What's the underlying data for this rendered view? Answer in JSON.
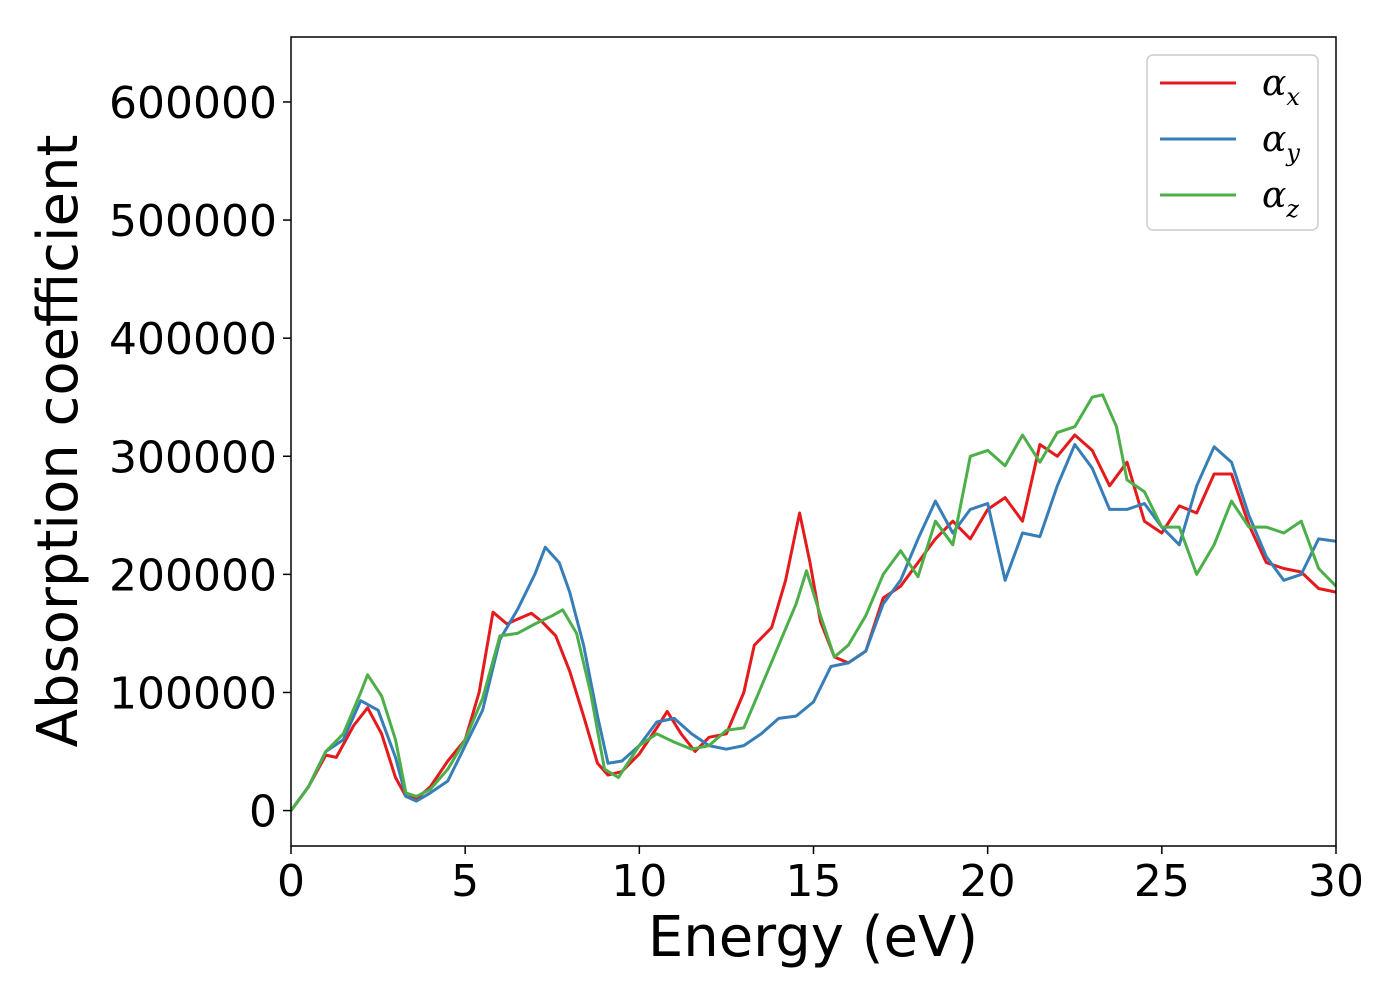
{
  "chart_data": {
    "type": "line",
    "xlabel": "Energy (eV)",
    "ylabel": "Absorption coefficient",
    "xlim": [
      0,
      30
    ],
    "ylim": [
      -30000,
      655000
    ],
    "xticks": [
      0,
      5,
      10,
      15,
      20,
      25,
      30
    ],
    "yticks": [
      0,
      100000,
      200000,
      300000,
      400000,
      500000,
      600000
    ],
    "grid": false,
    "legend_position": "top-right",
    "series": [
      {
        "name": "α",
        "subscript": "x",
        "color": "#e41a1c",
        "x": [
          0,
          0.5,
          1,
          1.3,
          1.8,
          2.2,
          2.6,
          3,
          3.3,
          3.6,
          4,
          4.5,
          5,
          5.4,
          5.8,
          6.2,
          6.5,
          6.9,
          7.2,
          7.6,
          8,
          8.4,
          8.8,
          9.1,
          9.5,
          10,
          10.5,
          10.8,
          11.2,
          11.6,
          12,
          12.5,
          13,
          13.3,
          13.8,
          14.2,
          14.6,
          14.9,
          15.2,
          15.6,
          16,
          16.5,
          17,
          17.5,
          18,
          18.5,
          19,
          19.5,
          20,
          20.5,
          21,
          21.5,
          22,
          22.5,
          23,
          23.5,
          24,
          24.5,
          25,
          25.5,
          26,
          26.5,
          27,
          27.5,
          28,
          28.5,
          29,
          29.5,
          30
        ],
        "y": [
          0,
          20000,
          47000,
          45000,
          72000,
          87000,
          65000,
          28000,
          12000,
          10000,
          20000,
          42000,
          60000,
          100000,
          168000,
          158000,
          162000,
          167000,
          160000,
          148000,
          118000,
          80000,
          40000,
          30000,
          33000,
          48000,
          70000,
          84000,
          65000,
          50000,
          62000,
          65000,
          100000,
          140000,
          155000,
          195000,
          252000,
          210000,
          160000,
          130000,
          125000,
          135000,
          180000,
          190000,
          210000,
          230000,
          245000,
          230000,
          255000,
          265000,
          245000,
          310000,
          300000,
          318000,
          305000,
          275000,
          295000,
          245000,
          235000,
          258000,
          252000,
          285000,
          285000,
          242000,
          210000,
          205000,
          202000,
          188000,
          185000
        ]
      },
      {
        "name": "α",
        "subscript": "y",
        "color": "#377eb8",
        "x": [
          0,
          0.5,
          1,
          1.5,
          2,
          2.5,
          3,
          3.3,
          3.6,
          4,
          4.5,
          5,
          5.5,
          6,
          6.5,
          7,
          7.3,
          7.7,
          8,
          8.4,
          8.8,
          9.1,
          9.5,
          10,
          10.5,
          11,
          11.5,
          12,
          12.5,
          13,
          13.5,
          14,
          14.5,
          15,
          15.5,
          16,
          16.5,
          17,
          17.5,
          18,
          18.5,
          19,
          19.5,
          20,
          20.5,
          21,
          21.5,
          22,
          22.5,
          23,
          23.5,
          24,
          24.5,
          25,
          25.5,
          26,
          26.5,
          27,
          27.5,
          28,
          28.5,
          29,
          29.5,
          30
        ],
        "y": [
          0,
          20000,
          50000,
          60000,
          93000,
          85000,
          45000,
          12000,
          8000,
          15000,
          25000,
          55000,
          85000,
          145000,
          170000,
          200000,
          223000,
          210000,
          185000,
          140000,
          80000,
          40000,
          42000,
          55000,
          75000,
          78000,
          65000,
          55000,
          52000,
          55000,
          65000,
          78000,
          80000,
          92000,
          122000,
          125000,
          135000,
          175000,
          195000,
          230000,
          262000,
          235000,
          255000,
          260000,
          195000,
          235000,
          232000,
          275000,
          310000,
          290000,
          255000,
          255000,
          260000,
          240000,
          225000,
          275000,
          308000,
          295000,
          250000,
          215000,
          195000,
          200000,
          230000,
          228000
        ]
      },
      {
        "name": "α",
        "subscript": "z",
        "color": "#4daf4a",
        "x": [
          0,
          0.5,
          1,
          1.5,
          2,
          2.2,
          2.6,
          3,
          3.3,
          3.6,
          4,
          4.5,
          5,
          5.5,
          6,
          6.5,
          7,
          7.5,
          7.8,
          8.2,
          8.6,
          9,
          9.4,
          10,
          10.5,
          11,
          11.5,
          12,
          12.5,
          13,
          13.5,
          14,
          14.5,
          14.8,
          15.2,
          15.6,
          16,
          16.5,
          17,
          17.5,
          18,
          18.5,
          19,
          19.5,
          20,
          20.5,
          21,
          21.5,
          22,
          22.5,
          23,
          23.3,
          23.7,
          24,
          24.5,
          25,
          25.5,
          26,
          26.5,
          27,
          27.5,
          28,
          28.5,
          29,
          29.5,
          30
        ],
        "y": [
          0,
          20000,
          50000,
          65000,
          100000,
          115000,
          97000,
          60000,
          15000,
          12000,
          18000,
          35000,
          60000,
          95000,
          148000,
          150000,
          158000,
          165000,
          170000,
          150000,
          100000,
          35000,
          28000,
          55000,
          65000,
          58000,
          52000,
          55000,
          68000,
          70000,
          105000,
          140000,
          175000,
          203000,
          165000,
          130000,
          140000,
          165000,
          200000,
          220000,
          198000,
          245000,
          225000,
          300000,
          305000,
          292000,
          318000,
          295000,
          320000,
          325000,
          350000,
          352000,
          325000,
          280000,
          270000,
          240000,
          240000,
          200000,
          225000,
          262000,
          240000,
          240000,
          235000,
          245000,
          205000,
          190000
        ]
      }
    ]
  }
}
